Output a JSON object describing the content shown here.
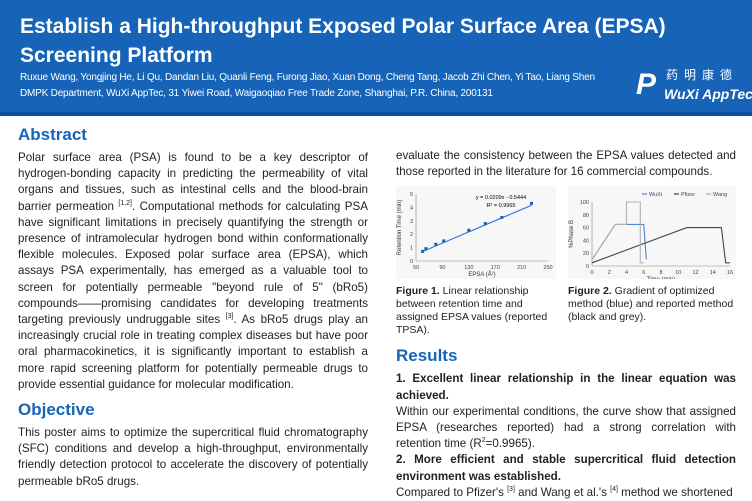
{
  "header": {
    "title": "Establish a High-throughput Exposed Polar Surface Area (EPSA) Screening Platform",
    "authors": "Ruxue Wang, Yongjing He, Li Qu, Dandan Liu, Quanli Feng, Furong Jiao, Xuan Dong, Cheng Tang, Jacob Zhi Chen, Yi Tao, Liang Shen",
    "affiliation": "DMPK Department, WuXi AppTec, 31 Yiwei Road, Waigaoqiao Free Trade Zone, Shanghai, P.R. China, 200131",
    "logo_cn": "药明康德",
    "logo_en": "WuXi AppTec",
    "brand_color": "#1663b8"
  },
  "abstract": {
    "heading": "Abstract",
    "p1": "Polar surface area (PSA) is found to be a key descriptor of hydrogen-bonding capacity in predicting the permeability of vital organs and tissues, such as intestinal cells and the blood-brain barrier permeation ",
    "ref1": "[1,2]",
    "p2": ". Computational methods for calculating PSA have significant limitations in precisely quantifying the strength or presence of intramolecular hydrogen bond within conformationally flexible molecules. Exposed polar surface area (EPSA), which assays PSA experimentally, has emerged as a valuable tool to screen for potentially permeable \"beyond rule of 5\" (bRo5) compounds——promising candidates for developing treatments targeting previously undruggable sites ",
    "ref2": "[3]",
    "p3": ". As bRo5 drugs play an increasingly crucial role in treating complex diseases but have poor oral pharmacokinetics, it is significantly important to establish a more rapid screening platform for potentially permeable drugs to provide essential guidance for molecular modification."
  },
  "objective": {
    "heading": "Objective",
    "text": "This poster aims to optimize the supercritical fluid chromatography (SFC) conditions and develop a high-throughput, environmentally friendly detection protocol to accelerate the discovery of potentially permeable bRo5 drugs."
  },
  "right_intro": "evaluate the consistency between the EPSA values detected and those reported in the literature for 16 commercial compounds.",
  "fig1_caption": {
    "label": "Figure 1.",
    "text": " Linear relationship between retention time and assigned EPSA values (reported TPSA)."
  },
  "fig2_caption": {
    "label": "Figure 2.",
    "text": " Gradient of optimized method (blue) and reported method (black and grey)."
  },
  "results": {
    "heading": "Results",
    "r1_title": "1.   Excellent linear relationship in the linear equation was achieved.",
    "r1_text_a": "Within our experimental conditions, the curve show that assigned EPSA (researches reported) had a strong correlation with retention time (R",
    "r1_sup": "2",
    "r1_text_b": "=0.9965).",
    "r2_title": "2. More efficient and stable supercritical fluid detection environment was established.",
    "r2_text_a": "Compared to Pfizer's ",
    "r2_ref1": "[3]",
    "r2_text_b": " and Wang et al.'s ",
    "r2_ref2": "[4]",
    "r2_text_c": " method we shortened"
  },
  "chart_data": [
    {
      "type": "scatter",
      "xlabel": "EPSA (Å²)",
      "ylabel": "Retention Time (min)",
      "xlim": [
        50,
        250
      ],
      "ylim": [
        0,
        5
      ],
      "xticks": [
        "50",
        "90",
        "130",
        "170",
        "210",
        "250"
      ],
      "yticks": [
        "0",
        "1",
        "2",
        "3",
        "4",
        "5"
      ],
      "x": [
        60,
        65,
        80,
        92,
        130,
        155,
        180,
        225
      ],
      "y": [
        0.72,
        0.92,
        1.25,
        1.5,
        2.3,
        2.8,
        3.25,
        4.3
      ],
      "trendline": {
        "slope": 0.0209,
        "intercept": -0.5444
      },
      "equation": "y = 0.0209x - 0.5444",
      "r2": "R² = 0.9965",
      "color": "#2f7fd6"
    },
    {
      "type": "line",
      "xlabel": "Time (min)",
      "ylabel": "%Phase B",
      "xlim": [
        0,
        16
      ],
      "ylim": [
        0,
        100
      ],
      "xticks": [
        "0",
        "2",
        "4",
        "6",
        "8",
        "10",
        "12",
        "14",
        "16"
      ],
      "yticks": [
        "0",
        "20",
        "40",
        "60",
        "80",
        "100"
      ],
      "legend": "top-right",
      "series": [
        {
          "name": "WuXi",
          "color": "#4a86d4",
          "x": [
            0,
            2.7,
            6,
            6.3
          ],
          "y": [
            10,
            65,
            65,
            10
          ]
        },
        {
          "name": "Pfizer",
          "color": "#444444",
          "x": [
            0,
            11,
            15,
            15.5,
            16
          ],
          "y": [
            5,
            60,
            60,
            5,
            5
          ]
        },
        {
          "name": "Wang",
          "color": "#b0b0b0",
          "x": [
            0,
            2.7,
            4,
            4,
            5.6,
            5.6,
            6
          ],
          "y": [
            10,
            65,
            65,
            100,
            100,
            5,
            5
          ]
        }
      ]
    }
  ]
}
